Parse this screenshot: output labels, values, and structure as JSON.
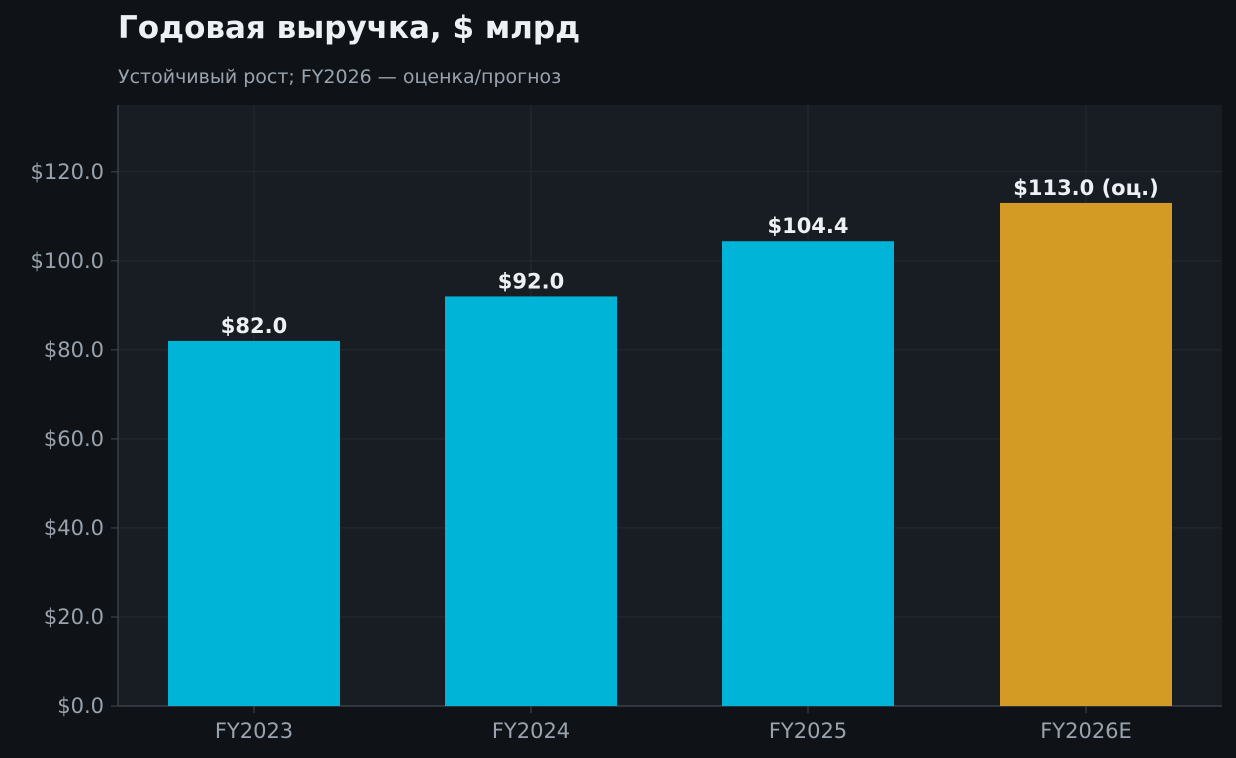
{
  "chart_data": {
    "type": "bar",
    "title": "Годовая выручка, $ млрд",
    "subtitle": "Устойчивый рост; FY2026 — оценка/прогноз",
    "categories": [
      "FY2023",
      "FY2024",
      "FY2025",
      "FY2026E"
    ],
    "values": [
      82.0,
      92.0,
      104.4,
      113.0
    ],
    "data_labels": [
      "$82.0",
      "$92.0",
      "$104.4",
      "$113.0 (оц.)"
    ],
    "estimate_flags": [
      false,
      false,
      false,
      true
    ],
    "ylim": [
      0,
      135
    ],
    "yticks": [
      0,
      20,
      40,
      60,
      80,
      100,
      120
    ],
    "ytick_labels": [
      "$0.0",
      "$20.0",
      "$40.0",
      "$60.0",
      "$80.0",
      "$100.0",
      "$120.0"
    ],
    "xlabel": "",
    "ylabel": "",
    "grid": true,
    "legend": "none",
    "colors": {
      "actual": "#00b4d8",
      "estimate": "#d39b24",
      "plot_background": "#181c23",
      "page_background": "#0f1317",
      "grid": "#262b33",
      "axis": "#3a4048",
      "tick_text": "#9aa3ad",
      "label_text": "#eef1f4"
    }
  }
}
